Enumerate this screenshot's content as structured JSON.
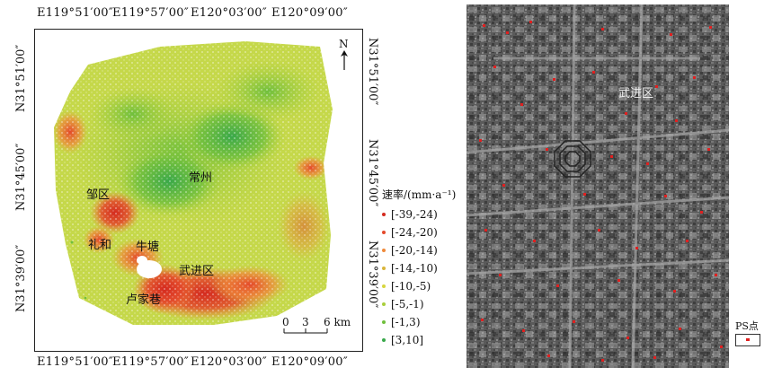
{
  "left_map": {
    "top_ticks": [
      "E119°51′00″",
      "E119°57′00″",
      "E120°03′00″",
      "E120°09′00″"
    ],
    "bottom_ticks": [
      "E119°51′00″",
      "E119°57′00″",
      "E120°03′00″",
      "E120°09′00″"
    ],
    "left_ticks": [
      "N31°51′00″",
      "N31°45′00″",
      "N31°39′00″"
    ],
    "right_ticks": [
      "N31°51′00″",
      "N31°45′00″",
      "N31°39′00″"
    ],
    "north_label": "N",
    "places": {
      "changzhou": "常州",
      "zouqu": "邹区",
      "lihe": "礼和",
      "niutang": "牛塘",
      "wujinqu": "武进区",
      "lujiaxiang": "卢家巷"
    },
    "scale_bar": {
      "labels": [
        "0",
        "3",
        "6 km"
      ]
    }
  },
  "legend": {
    "title": "速率/(mm·a⁻¹)",
    "items": [
      {
        "label": "[-39,-24)",
        "color": "#d42a1f"
      },
      {
        "label": "[-24,-20)",
        "color": "#e4492b"
      },
      {
        "label": "[-20,-14)",
        "color": "#ef8a3a"
      },
      {
        "label": "[-14,-10)",
        "color": "#d9b53a"
      },
      {
        "label": "[-10,-5)",
        "color": "#d7d63e"
      },
      {
        "label": "[-5,-1)",
        "color": "#a9cf3c"
      },
      {
        "label": "[-1,3)",
        "color": "#6fbf3d"
      },
      {
        "label": "[3,10]",
        "color": "#39a84a"
      }
    ]
  },
  "right_map": {
    "place_label": "武进区",
    "ps_legend_label": "PS点"
  }
}
